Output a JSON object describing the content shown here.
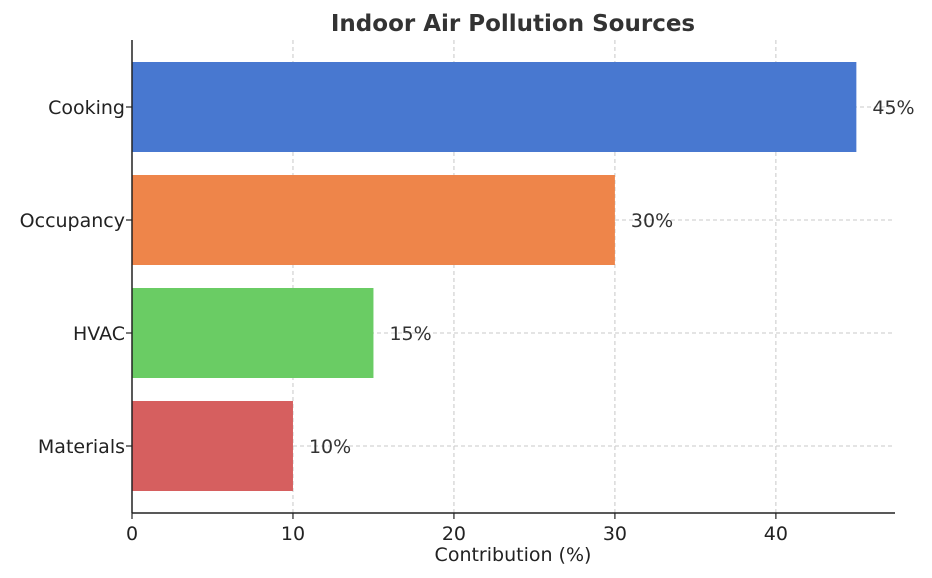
{
  "chart_data": {
    "type": "bar",
    "orientation": "horizontal",
    "title": "Indoor Air Pollution Sources",
    "xlabel": "Contribution (%)",
    "ylabel": "",
    "categories": [
      "Cooking",
      "Occupancy",
      "HVAC",
      "Materials"
    ],
    "values": [
      45,
      30,
      15,
      10
    ],
    "data_labels": [
      "45%",
      "30%",
      "15%",
      "10%"
    ],
    "colors": [
      "#4878d0",
      "#ee854a",
      "#6acc64",
      "#d65f5f"
    ],
    "xlim": [
      0,
      47.4
    ],
    "xticks": [
      0,
      10,
      20,
      30,
      40
    ],
    "xtick_labels": [
      "0",
      "10",
      "20",
      "30",
      "40"
    ],
    "grid": true,
    "legend": "none"
  }
}
